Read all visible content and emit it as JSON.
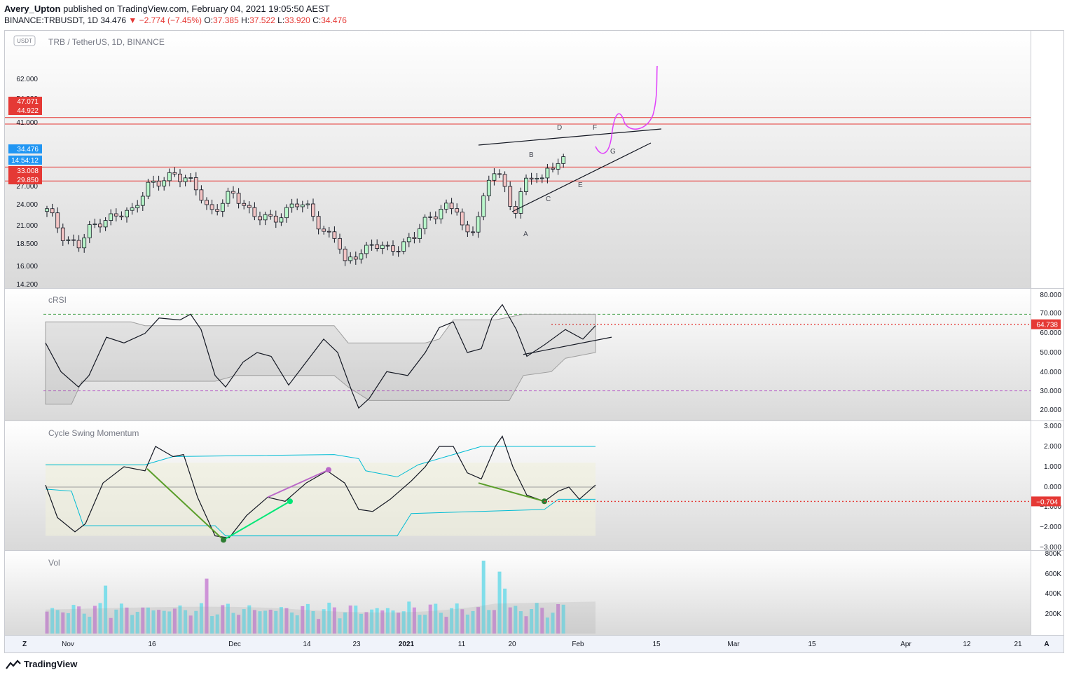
{
  "header": {
    "author": "Avery_Upton",
    "published_text": "published on TradingView.com, February 04, 2021 19:05:50 AEST",
    "symbol": "BINANCE:TRBUSDT, 1D",
    "last": "34.476",
    "change": "▼ −2.774 (−7.45%)",
    "o_label": "O:",
    "o": "37.385",
    "h_label": "H:",
    "h": "37.522",
    "l_label": "L:",
    "l": "33.920",
    "c_label": "C:",
    "c": "34.476"
  },
  "main_pane": {
    "title": "TRB / TetherUS, 1D, BINANCE",
    "currency_badge": "USDT",
    "y_ticks": [
      "62.000",
      "54.000",
      "41.000",
      "27.000",
      "24.000",
      "21.000",
      "18.500",
      "16.000",
      "14.200"
    ],
    "price_tags": [
      {
        "text": "47.071",
        "color": "#e53935"
      },
      {
        "text": "44.922",
        "color": "#e53935"
      },
      {
        "text": "34.476",
        "color": "#2196f3"
      },
      {
        "text": "14:54:12",
        "color": "#2196f3"
      },
      {
        "text": "33.008",
        "color": "#e53935"
      },
      {
        "text": "29.850",
        "color": "#e53935"
      }
    ],
    "pattern_labels": [
      "A",
      "B",
      "C",
      "D",
      "E",
      "F",
      "G"
    ]
  },
  "crsi_pane": {
    "title": "cRSI",
    "y_ticks": [
      "80.000",
      "70.000",
      "60.000",
      "50.000",
      "40.000",
      "30.000",
      "20.000"
    ],
    "value_tag": "64.738"
  },
  "csm_pane": {
    "title": "Cycle Swing Momentum",
    "y_ticks": [
      "3.000",
      "2.000",
      "1.000",
      "0.000",
      "−1.000",
      "−2.000",
      "−3.000"
    ],
    "value_tag": "−0.704"
  },
  "vol_pane": {
    "title": "Vol",
    "y_ticks": [
      "800K",
      "600K",
      "400K",
      "200K"
    ]
  },
  "x_axis": {
    "labels": [
      "Nov",
      "16",
      "Dec",
      "14",
      "23",
      "2021",
      "11",
      "20",
      "Feb",
      "15",
      "Mar",
      "15",
      "Apr",
      "12",
      "21"
    ],
    "left_button": "Z",
    "right_button": "A"
  },
  "footer": {
    "brand": "TradingView"
  },
  "colors": {
    "bull": "#26a69a",
    "bear": "#ef5350",
    "pink": "#e040fb",
    "level": "#e53935",
    "band": "#00bcd4",
    "divergence_bull": "#2e7d32",
    "divergence_hidden": "#00e676",
    "divergence_purple": "#ba68c8"
  },
  "chart_data": {
    "type": "candlestick",
    "symbol": "TRBUSDT",
    "timeframe": "1D",
    "ylim": [
      14.2,
      62.0
    ],
    "levels": [
      47.071,
      44.922,
      33.008,
      29.85
    ],
    "last_price": 34.476,
    "volume_ylim": [
      0,
      800000
    ]
  }
}
